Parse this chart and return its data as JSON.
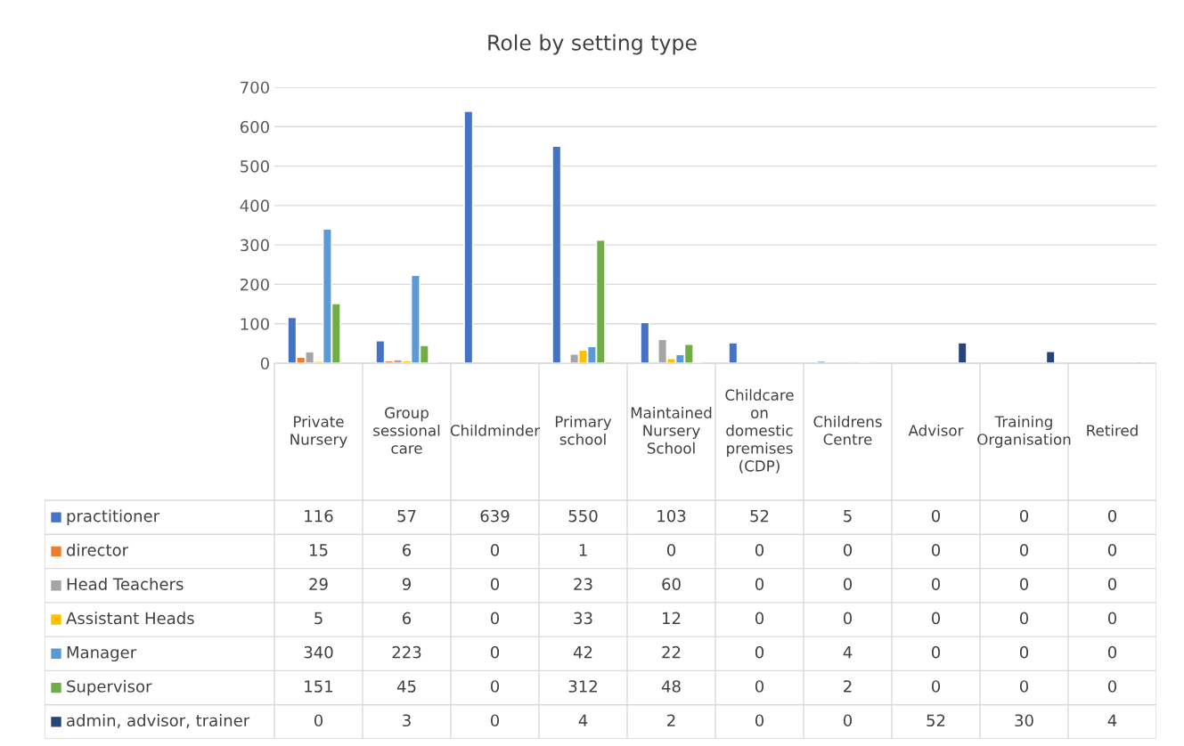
{
  "chart_data": {
    "type": "bar",
    "title": "Role by setting type",
    "categories": [
      "Private Nursery",
      "Group sessional care",
      "Childminder",
      "Primary school",
      "Maintained Nursery School",
      "Childcare on domestic premises (CDP)",
      "Childrens Centre",
      "Advisor",
      "Training Organisation",
      "Retired"
    ],
    "series": [
      {
        "name": "practitioner",
        "color": "#4472c4",
        "values": [
          116,
          57,
          639,
          550,
          103,
          52,
          5,
          0,
          0,
          0
        ]
      },
      {
        "name": "director",
        "color": "#ed7d31",
        "values": [
          15,
          6,
          0,
          1,
          0,
          0,
          0,
          0,
          0,
          0
        ]
      },
      {
        "name": "Head Teachers",
        "color": "#a5a5a5",
        "values": [
          29,
          9,
          0,
          23,
          60,
          0,
          0,
          0,
          0,
          0
        ]
      },
      {
        "name": "Assistant Heads",
        "color": "#ffc000",
        "values": [
          5,
          6,
          0,
          33,
          12,
          0,
          0,
          0,
          0,
          0
        ]
      },
      {
        "name": "Manager",
        "color": "#5b9bd5",
        "values": [
          340,
          223,
          0,
          42,
          22,
          0,
          4,
          0,
          0,
          0
        ]
      },
      {
        "name": "Supervisor",
        "color": "#70ad47",
        "values": [
          151,
          45,
          0,
          312,
          48,
          0,
          2,
          0,
          0,
          0
        ]
      },
      {
        "name": "admin, advisor, trainer",
        "color": "#264478",
        "values": [
          0,
          3,
          0,
          4,
          2,
          0,
          0,
          52,
          30,
          4
        ]
      }
    ],
    "ylim": [
      0,
      700
    ],
    "yticks": [
      0,
      100,
      200,
      300,
      400,
      500,
      600,
      700
    ],
    "grid": "y",
    "legend": "bottom",
    "data_labels": true
  }
}
